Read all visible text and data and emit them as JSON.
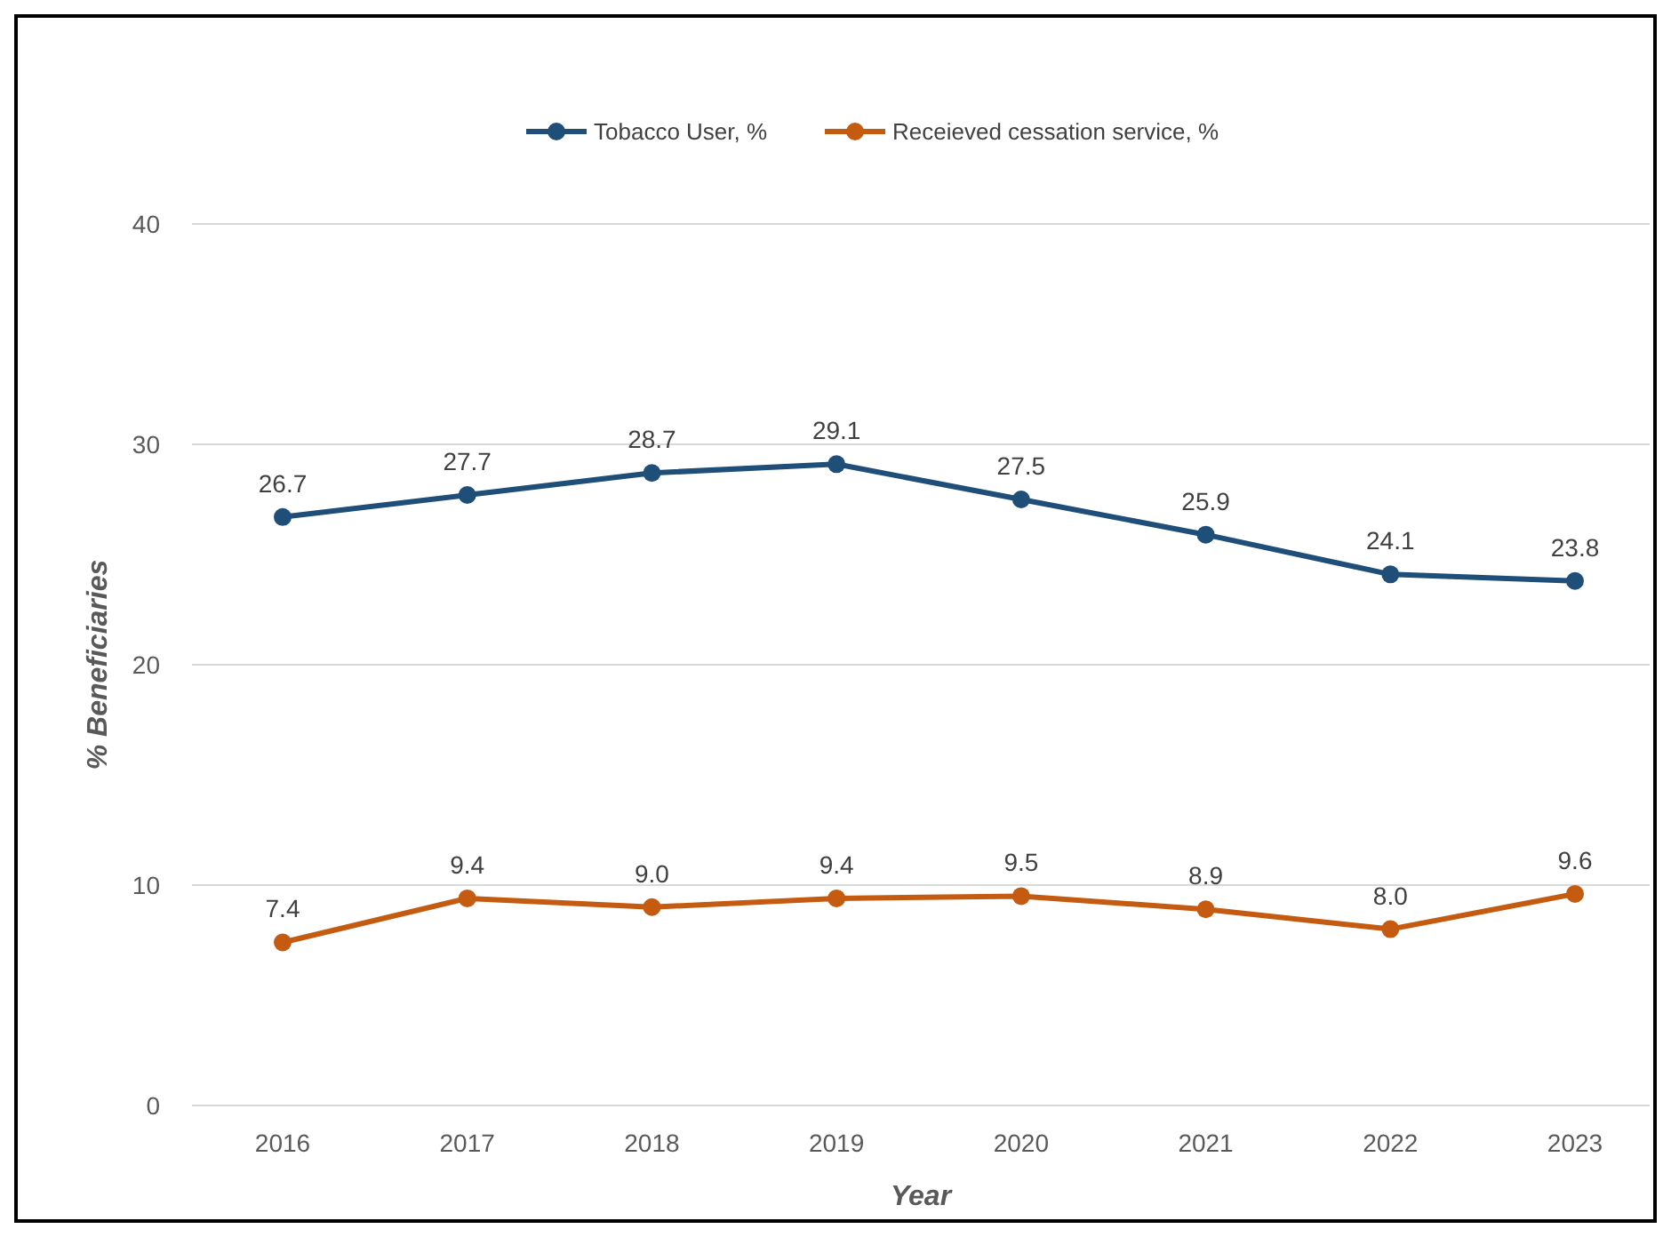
{
  "chart_data": {
    "type": "line",
    "xlabel": "Year",
    "ylabel": "% Beneficiaries",
    "categories": [
      "2016",
      "2017",
      "2018",
      "2019",
      "2020",
      "2021",
      "2022",
      "2023"
    ],
    "series": [
      {
        "name": "Tobacco User, %",
        "color": "#1f4e79",
        "values": [
          26.7,
          27.7,
          28.7,
          29.1,
          27.5,
          25.9,
          24.1,
          23.8
        ],
        "value_labels": [
          "26.7",
          "27.7",
          "28.7",
          "29.1",
          "27.5",
          "25.9",
          "24.1",
          "23.8"
        ]
      },
      {
        "name": "Receieved cessation service, %",
        "color": "#c55a11",
        "values": [
          7.4,
          9.4,
          9.0,
          9.4,
          9.5,
          8.9,
          8.0,
          9.6
        ],
        "value_labels": [
          "7.4",
          "9.4",
          "9.0",
          "9.4",
          "9.5",
          "8.9",
          "8.0",
          "9.6"
        ]
      }
    ],
    "ylim": [
      0,
      40
    ],
    "yticks": [
      0,
      10,
      20,
      30,
      40
    ],
    "grid": "y",
    "legend": "top",
    "marker": "circle",
    "line_style": "solid"
  }
}
